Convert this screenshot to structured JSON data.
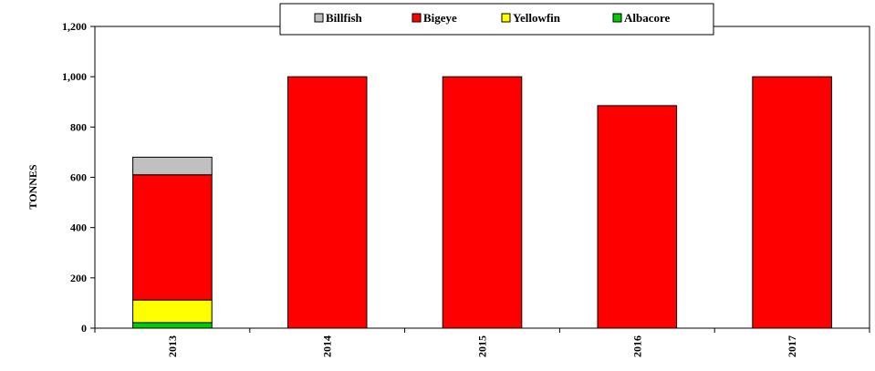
{
  "chart_data": {
    "type": "bar",
    "stacked": true,
    "categories": [
      "2013",
      "2014",
      "2015",
      "2016",
      "2017"
    ],
    "series": [
      {
        "name": "Albacore",
        "color": "#00cc00",
        "values": [
          22,
          0,
          0,
          0,
          0
        ]
      },
      {
        "name": "Yellowfin",
        "color": "#ffff00",
        "values": [
          90,
          0,
          0,
          0,
          0
        ]
      },
      {
        "name": "Bigeye",
        "color": "#ff0000",
        "values": [
          498,
          1000,
          1000,
          885,
          1000
        ]
      },
      {
        "name": "Billfish",
        "color": "#c0c0c0",
        "values": [
          70,
          0,
          0,
          0,
          0
        ]
      }
    ],
    "legend_order": [
      "Billfish",
      "Bigeye",
      "Yellowfin",
      "Albacore"
    ],
    "legend_position": "top-center",
    "ylabel": "TONNES",
    "xlabel": "",
    "ylim": [
      0,
      1200
    ],
    "yticks": [
      0,
      200,
      400,
      600,
      800,
      1000,
      1200
    ],
    "ytick_labels": [
      "0",
      "200",
      "400",
      "600",
      "800",
      "1,000",
      "1,200"
    ],
    "grid": false
  }
}
